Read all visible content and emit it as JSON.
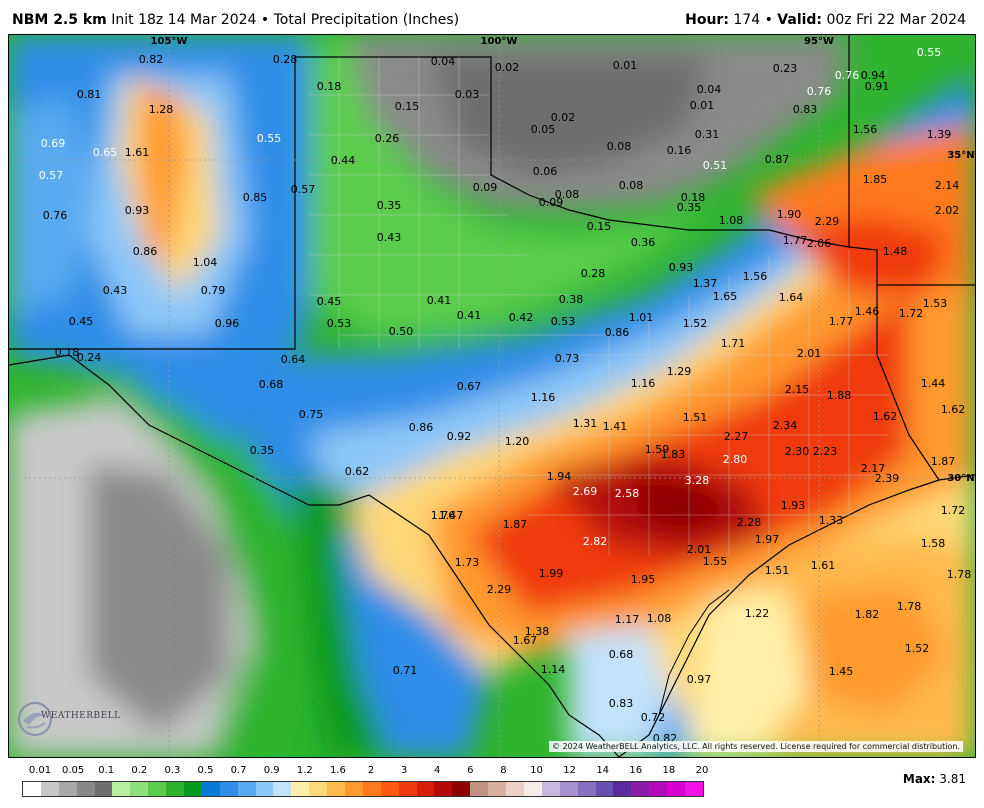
{
  "header": {
    "model": "NBM 2.5 km",
    "init": "Init 18z 14 Mar 2024",
    "sep": "•",
    "product": "Total Precipitation (Inches)",
    "hour_label": "Hour:",
    "hour_value": "174",
    "valid_label": "Valid:",
    "valid_value": "00z Fri 22 Mar 2024"
  },
  "axes": {
    "lon_labels": [
      "105°W",
      "100°W",
      "95°W"
    ],
    "lat_labels": [
      "35°N",
      "30°N"
    ]
  },
  "points": [
    {
      "v": "0.28"
    },
    {
      "v": "0.04"
    },
    {
      "v": "0.02"
    },
    {
      "v": "0.01"
    },
    {
      "v": "0.23"
    },
    {
      "v": "0.76"
    },
    {
      "v": "0.94"
    },
    {
      "v": "0.55"
    },
    {
      "v": "0.82"
    },
    {
      "v": "0.81"
    },
    {
      "v": "1.28"
    },
    {
      "v": "0.18"
    },
    {
      "v": "0.03"
    },
    {
      "v": "0.15"
    },
    {
      "v": "0.04"
    },
    {
      "v": "0.01"
    },
    {
      "v": "0.76"
    },
    {
      "v": "0.91"
    },
    {
      "v": "0.83"
    },
    {
      "v": "0.02"
    },
    {
      "v": "0.05"
    },
    {
      "v": "0.31"
    },
    {
      "v": "1.56"
    },
    {
      "v": "1.39"
    },
    {
      "v": "0.69"
    },
    {
      "v": "0.65"
    },
    {
      "v": "1.61"
    },
    {
      "v": "0.55"
    },
    {
      "v": "0.26"
    },
    {
      "v": "0.08"
    },
    {
      "v": "0.16"
    },
    {
      "v": "0.87"
    },
    {
      "v": "0.51"
    },
    {
      "v": "0.57"
    },
    {
      "v": "0.44"
    },
    {
      "v": "0.06"
    },
    {
      "v": "0.09"
    },
    {
      "v": "0.08"
    },
    {
      "v": "0.08"
    },
    {
      "v": "1.85"
    },
    {
      "v": "2.14"
    },
    {
      "v": "0.57"
    },
    {
      "v": "0.85"
    },
    {
      "v": "0.18"
    },
    {
      "v": "0.35"
    },
    {
      "v": "0.76"
    },
    {
      "v": "0.93"
    },
    {
      "v": "0.35"
    },
    {
      "v": "0.09"
    },
    {
      "v": "1.08"
    },
    {
      "v": "1.90"
    },
    {
      "v": "2.29"
    },
    {
      "v": "2.02"
    },
    {
      "v": "0.15"
    },
    {
      "v": "0.36"
    },
    {
      "v": "0.43"
    },
    {
      "v": "1.77"
    },
    {
      "v": "2.06"
    },
    {
      "v": "0.86"
    },
    {
      "v": "1.04"
    },
    {
      "v": "1.48"
    },
    {
      "v": "0.28"
    },
    {
      "v": "0.93"
    },
    {
      "v": "1.56"
    },
    {
      "v": "1.37"
    },
    {
      "v": "0.43"
    },
    {
      "v": "0.79"
    },
    {
      "v": "0.38"
    },
    {
      "v": "1.65"
    },
    {
      "v": "1.64"
    },
    {
      "v": "1.53"
    },
    {
      "v": "0.45"
    },
    {
      "v": "0.41"
    },
    {
      "v": "1.46"
    },
    {
      "v": "1.72"
    },
    {
      "v": "0.45"
    },
    {
      "v": "0.96"
    },
    {
      "v": "0.53"
    },
    {
      "v": "0.41"
    },
    {
      "v": "0.42"
    },
    {
      "v": "0.53"
    },
    {
      "v": "1.01"
    },
    {
      "v": "1.52"
    },
    {
      "v": "1.77"
    },
    {
      "v": "0.50"
    },
    {
      "v": "0.86"
    },
    {
      "v": "1.71"
    },
    {
      "v": "0.18"
    },
    {
      "v": "0.24"
    },
    {
      "v": "0.64"
    },
    {
      "v": "0.73"
    },
    {
      "v": "2.01"
    },
    {
      "v": "1.29"
    },
    {
      "v": "1.44"
    },
    {
      "v": "0.68"
    },
    {
      "v": "0.67"
    },
    {
      "v": "1.16"
    },
    {
      "v": "2.15"
    },
    {
      "v": "1.88"
    },
    {
      "v": "1.16"
    },
    {
      "v": "1.62"
    },
    {
      "v": "0.75"
    },
    {
      "v": "1.51"
    },
    {
      "v": "1.62"
    },
    {
      "v": "0.86"
    },
    {
      "v": "0.92"
    },
    {
      "v": "1.31"
    },
    {
      "v": "1.41"
    },
    {
      "v": "2.34"
    },
    {
      "v": "1.20"
    },
    {
      "v": "2.27"
    },
    {
      "v": "0.35"
    },
    {
      "v": "1.59"
    },
    {
      "v": "2.30"
    },
    {
      "v": "2.23"
    },
    {
      "v": "1.83"
    },
    {
      "v": "2.80"
    },
    {
      "v": "1.87"
    },
    {
      "v": "0.62"
    },
    {
      "v": "2.17"
    },
    {
      "v": "2.39"
    },
    {
      "v": "1.94"
    },
    {
      "v": "3.28"
    },
    {
      "v": "2.69"
    },
    {
      "v": "2.58"
    },
    {
      "v": "1.93"
    },
    {
      "v": "1.72"
    },
    {
      "v": "1.76"
    },
    {
      "v": "1.47"
    },
    {
      "v": "1.87"
    },
    {
      "v": "2.28"
    },
    {
      "v": "1.33"
    },
    {
      "v": "2.82"
    },
    {
      "v": "1.97"
    },
    {
      "v": "1.58"
    },
    {
      "v": "2.01"
    },
    {
      "v": "1.73"
    },
    {
      "v": "1.55"
    },
    {
      "v": "1.61"
    },
    {
      "v": "1.51"
    },
    {
      "v": "1.99"
    },
    {
      "v": "1.95"
    },
    {
      "v": "1.78"
    },
    {
      "v": "2.29"
    },
    {
      "v": "1.78"
    },
    {
      "v": "1.22"
    },
    {
      "v": "1.82"
    },
    {
      "v": "1.17"
    },
    {
      "v": "1.08"
    },
    {
      "v": "1.38"
    },
    {
      "v": "1.67"
    },
    {
      "v": "1.52"
    },
    {
      "v": "0.68"
    },
    {
      "v": "0.71"
    },
    {
      "v": "1.14"
    },
    {
      "v": "1.45"
    },
    {
      "v": "0.97"
    },
    {
      "v": "0.83"
    },
    {
      "v": "0.72"
    },
    {
      "v": "0.82"
    }
  ],
  "legend": {
    "ticks": [
      "0.01",
      "0.05",
      "0.1",
      "0.2",
      "0.3",
      "0.5",
      "0.7",
      "0.9",
      "1.2",
      "1.6",
      "2",
      "3",
      "4",
      "6",
      "8",
      "10",
      "12",
      "14",
      "16",
      "18",
      "20"
    ],
    "colors": [
      "#ffffff",
      "#c8c8c8",
      "#a8a8a8",
      "#888888",
      "#6e6e6e",
      "#b4f0a0",
      "#8ee07a",
      "#5ccc4e",
      "#2eb42e",
      "#0a9a1e",
      "#0a7ad8",
      "#2e8ee8",
      "#5aaaf0",
      "#8ec8f8",
      "#c2e2fa",
      "#fff0a8",
      "#ffd878",
      "#ffba4c",
      "#ff9a2e",
      "#ff7a1e",
      "#ff5a12",
      "#f03a0e",
      "#d81e0a",
      "#b40a0a",
      "#8c0000",
      "#c09080",
      "#d8b0a0",
      "#ecd0c8",
      "#f8ece8",
      "#c8b8e0",
      "#a890d0",
      "#8870c0",
      "#6850b0",
      "#5a2aa0",
      "#8a1aa8",
      "#b20ab8",
      "#d800d0",
      "#f010e8"
    ]
  },
  "max_label": "Max:",
  "max_value": "3.81",
  "copyright": "© 2024 WeatherBELL Analytics, LLC. All rights reserved. License required for commercial distribution.",
  "logo_text": "WEATHERBELL"
}
